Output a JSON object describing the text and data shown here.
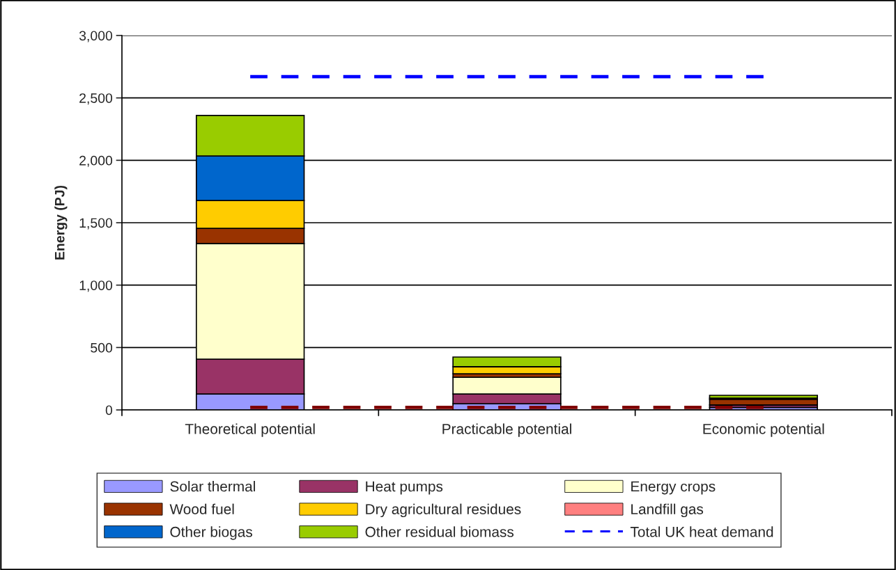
{
  "chart_data": {
    "type": "bar",
    "stacked": true,
    "ylabel": "Energy (PJ)",
    "categories": [
      "Theoretical potential",
      "Practicable potential",
      "Economic potential"
    ],
    "ylim": [
      0,
      3000
    ],
    "yticks": [
      {
        "value": 0,
        "label": "0"
      },
      {
        "value": 500,
        "label": "500"
      },
      {
        "value": 1000,
        "label": "1,000"
      },
      {
        "value": 1500,
        "label": "1,500"
      },
      {
        "value": 2000,
        "label": "2,000"
      },
      {
        "value": 2500,
        "label": "2,500"
      },
      {
        "value": 3000,
        "label": "3,000"
      }
    ],
    "grid": "y",
    "legend": "bottom",
    "series": [
      {
        "name": "Solar thermal",
        "color": "#9999ff",
        "values": [
          128,
          50,
          20
        ]
      },
      {
        "name": "Heat pumps",
        "color": "#993366",
        "values": [
          279,
          78,
          20
        ]
      },
      {
        "name": "Energy crops",
        "color": "#ffffcc",
        "values": [
          926,
          134,
          0
        ]
      },
      {
        "name": "Wood fuel",
        "color": "#993300",
        "values": [
          122,
          28,
          45
        ]
      },
      {
        "name": "Dry agricultural residues",
        "color": "#ffcc00",
        "values": [
          223,
          56,
          10
        ]
      },
      {
        "name": "Landfill gas",
        "color": "#ff8080",
        "values": [
          0,
          0,
          0
        ]
      },
      {
        "name": "Other biogas",
        "color": "#0066cc",
        "values": [
          357,
          0,
          0
        ]
      },
      {
        "name": "Other residual biomass",
        "color": "#99cc00",
        "values": [
          324,
          78,
          22
        ]
      },
      {
        "name": "Total UK heat demand",
        "type": "line",
        "color": "#0000ff",
        "line_style": "dashed",
        "values": [
          2670,
          2670,
          2670
        ]
      },
      {
        "type": "line",
        "color": "#800000",
        "line_style": "dashed",
        "values": [
          20,
          20,
          20
        ]
      }
    ]
  }
}
